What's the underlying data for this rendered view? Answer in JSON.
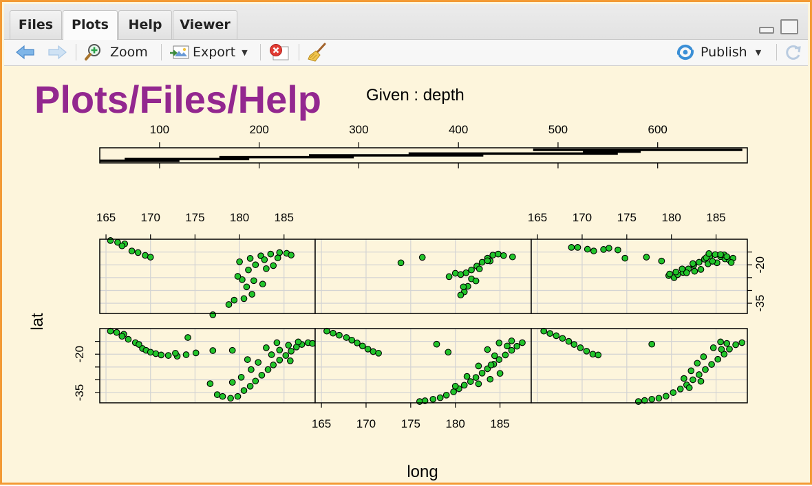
{
  "tabs": [
    {
      "label": "Files",
      "active": false
    },
    {
      "label": "Plots",
      "active": true
    },
    {
      "label": "Help",
      "active": false
    },
    {
      "label": "Viewer",
      "active": false
    }
  ],
  "toolbar": {
    "zoom_label": "Zoom",
    "export_label": "Export",
    "publish_label": "Publish"
  },
  "plot": {
    "watermark": "Plots/Files/Help",
    "given_label": "Given : depth",
    "x_label": "long",
    "y_label": "lat"
  },
  "colors": {
    "border": "#f39a34",
    "background": "#fdf5dc",
    "watermark": "#93278f",
    "points": "#22c42b"
  },
  "chart_data": {
    "type": "scatter",
    "subtype": "coplot",
    "given": {
      "name": "depth",
      "ticks": [
        100,
        200,
        300,
        400,
        500,
        600
      ],
      "range": [
        40,
        690
      ],
      "intervals": [
        [
          40,
          120
        ],
        [
          65,
          190
        ],
        [
          160,
          295
        ],
        [
          250,
          425
        ],
        [
          350,
          560
        ],
        [
          525,
          583
        ],
        [
          475,
          685
        ]
      ]
    },
    "x_axis": {
      "label": "long",
      "ticks": [
        165,
        170,
        175,
        180,
        185
      ],
      "range": [
        164.3,
        188.5
      ]
    },
    "y_axis": {
      "label": "lat",
      "ticks": [
        -20,
        -35
      ],
      "range": [
        -39,
        -10
      ]
    },
    "grid": true,
    "panels": [
      {
        "interval": 1,
        "row": "bottom",
        "col": 1,
        "points": [
          [
            165.5,
            -11
          ],
          [
            166.2,
            -11.5
          ],
          [
            167,
            -12.2
          ],
          [
            166.8,
            -13
          ],
          [
            167.5,
            -14.2
          ],
          [
            168.3,
            -15.5
          ],
          [
            168.7,
            -16.2
          ],
          [
            169.1,
            -17.8
          ],
          [
            169.5,
            -18.5
          ],
          [
            170,
            -19.2
          ],
          [
            170.6,
            -19.8
          ],
          [
            171.2,
            -20.3
          ],
          [
            172,
            -20.5
          ],
          [
            173,
            -20.8
          ],
          [
            174,
            -20.2
          ],
          [
            172.8,
            -19.6
          ],
          [
            175.1,
            -19.5
          ],
          [
            174.2,
            -13.5
          ],
          [
            177,
            -18.6
          ],
          [
            179.2,
            -18.5
          ],
          [
            176.7,
            -31.5
          ],
          [
            177.5,
            -35.8
          ],
          [
            178.1,
            -36.5
          ],
          [
            179,
            -37.2
          ],
          [
            179.8,
            -36.5
          ],
          [
            180.5,
            -34.2
          ],
          [
            181.2,
            -32.5
          ],
          [
            181.8,
            -30.5
          ],
          [
            182.5,
            -28.2
          ],
          [
            183.2,
            -26
          ],
          [
            183.8,
            -24.2
          ],
          [
            184.5,
            -22.3
          ],
          [
            185.2,
            -20.5
          ],
          [
            185.8,
            -18.8
          ],
          [
            186.4,
            -17.2
          ],
          [
            187,
            -16.2
          ],
          [
            187.7,
            -15.5
          ],
          [
            188.2,
            -15.8
          ],
          [
            184.2,
            -15.5
          ],
          [
            185.5,
            -16.5
          ],
          [
            186.6,
            -15.2
          ],
          [
            183,
            -17.5
          ],
          [
            182.1,
            -23.2
          ],
          [
            181.3,
            -26
          ],
          [
            180.2,
            -29
          ],
          [
            179.2,
            -31
          ],
          [
            183.6,
            -20.2
          ],
          [
            180.9,
            -22.1
          ],
          [
            185.7,
            -22.6
          ],
          [
            184.5,
            -18.4
          ]
        ]
      },
      {
        "interval": 2,
        "row": "bottom",
        "col": 2,
        "points": [
          [
            165.6,
            -11
          ],
          [
            166.3,
            -11.8
          ],
          [
            167,
            -12.6
          ],
          [
            167.8,
            -13.5
          ],
          [
            168.4,
            -14.5
          ],
          [
            169,
            -15.6
          ],
          [
            169.6,
            -16.8
          ],
          [
            170.2,
            -18
          ],
          [
            170.8,
            -19
          ],
          [
            171.4,
            -19.6
          ],
          [
            177.9,
            -16.1
          ],
          [
            179.2,
            -19.2
          ],
          [
            176,
            -38.5
          ],
          [
            176.6,
            -38.2
          ],
          [
            177.5,
            -37.6
          ],
          [
            178.3,
            -37
          ],
          [
            179,
            -36
          ],
          [
            179.8,
            -34.7
          ],
          [
            180.4,
            -33.5
          ],
          [
            181,
            -32.1
          ],
          [
            181.7,
            -30.7
          ],
          [
            182.3,
            -29.1
          ],
          [
            183,
            -27.4
          ],
          [
            183.6,
            -25.7
          ],
          [
            184.3,
            -23.9
          ],
          [
            184.9,
            -22.1
          ],
          [
            185.6,
            -20.3
          ],
          [
            186.3,
            -18.5
          ],
          [
            186.9,
            -16.9
          ],
          [
            187.5,
            -15.5
          ],
          [
            184.9,
            -15.6
          ],
          [
            185.8,
            -16.8
          ],
          [
            186.3,
            -14.8
          ],
          [
            183.6,
            -18.2
          ],
          [
            184.4,
            -20.6
          ],
          [
            182.6,
            -24.6
          ],
          [
            181.3,
            -28.7
          ],
          [
            180,
            -32.5
          ],
          [
            185,
            -27.5
          ],
          [
            183.9,
            -29.8
          ],
          [
            182.6,
            -31.6
          ],
          [
            184,
            -24.2
          ]
        ]
      },
      {
        "interval": 3,
        "row": "bottom",
        "col": 3,
        "points": [
          [
            165.7,
            -11
          ],
          [
            166.4,
            -11.9
          ],
          [
            167.1,
            -12.8
          ],
          [
            167.8,
            -13.8
          ],
          [
            168.5,
            -15
          ],
          [
            169.1,
            -16.2
          ],
          [
            169.8,
            -17.5
          ],
          [
            170.5,
            -18.8
          ],
          [
            171.2,
            -20
          ],
          [
            171.8,
            -20.3
          ],
          [
            177.8,
            -16.1
          ],
          [
            176.3,
            -38.5
          ],
          [
            177,
            -38.1
          ],
          [
            177.8,
            -37.6
          ],
          [
            178.6,
            -37.2
          ],
          [
            179.4,
            -36.4
          ],
          [
            180.2,
            -35
          ],
          [
            181,
            -33.6
          ],
          [
            181.7,
            -32
          ],
          [
            182.4,
            -30
          ],
          [
            183.1,
            -28
          ],
          [
            183.8,
            -26
          ],
          [
            184.5,
            -24
          ],
          [
            185.2,
            -22
          ],
          [
            185.9,
            -20
          ],
          [
            186.5,
            -18
          ],
          [
            187.2,
            -16.3
          ],
          [
            187.9,
            -15.5
          ],
          [
            185.5,
            -15.2
          ],
          [
            186.2,
            -15.8
          ],
          [
            184.7,
            -17.5
          ],
          [
            183.6,
            -21
          ],
          [
            182.2,
            -26.5
          ],
          [
            181.4,
            -29.5
          ],
          [
            182.9,
            -23.5
          ],
          [
            185.6,
            -18.1
          ],
          [
            183.3,
            -30.6
          ],
          [
            182,
            -33.1
          ]
        ]
      },
      {
        "interval": 4,
        "row": "top",
        "col": 1,
        "points": [
          [
            165.5,
            -10.5
          ],
          [
            166.3,
            -11.2
          ],
          [
            167.1,
            -11.8
          ],
          [
            166.8,
            -12.6
          ],
          [
            167.9,
            -14.6
          ],
          [
            168.6,
            -15.2
          ],
          [
            169.4,
            -16.3
          ],
          [
            170,
            -17
          ],
          [
            180,
            -18.8
          ],
          [
            181.2,
            -17.5
          ],
          [
            182.4,
            -16.5
          ],
          [
            183.5,
            -15.8
          ],
          [
            184.5,
            -15.2
          ],
          [
            185.3,
            -15.5
          ],
          [
            185.8,
            -16.2
          ],
          [
            182.8,
            -18
          ],
          [
            181.8,
            -20
          ],
          [
            181,
            -22
          ],
          [
            180.3,
            -25.8
          ],
          [
            181.6,
            -26.2
          ],
          [
            180.8,
            -28.6
          ],
          [
            181.4,
            -31.5
          ],
          [
            180.5,
            -33.2
          ],
          [
            179.4,
            -33.8
          ],
          [
            178.8,
            -35.5
          ],
          [
            177,
            -39.5
          ],
          [
            182.6,
            -27.5
          ],
          [
            183.8,
            -20.3
          ],
          [
            183,
            -21.5
          ],
          [
            184.3,
            -17.3
          ],
          [
            179.8,
            -24.5
          ]
        ]
      },
      {
        "interval": 5,
        "row": "top",
        "col": 2,
        "points": [
          [
            173.9,
            -19.2
          ],
          [
            176.3,
            -17.1
          ],
          [
            179.3,
            -24.6
          ],
          [
            180,
            -23.3
          ],
          [
            180.6,
            -23.8
          ],
          [
            181.2,
            -23.1
          ],
          [
            181.8,
            -22
          ],
          [
            182.4,
            -20.5
          ],
          [
            183,
            -19
          ],
          [
            183.6,
            -17.4
          ],
          [
            184.2,
            -16.2
          ],
          [
            184.8,
            -15.8
          ],
          [
            185.4,
            -16.4
          ],
          [
            183.9,
            -18.5
          ],
          [
            182.7,
            -21.6
          ],
          [
            181.8,
            -25.5
          ],
          [
            181.4,
            -28.4
          ],
          [
            181,
            -30.6
          ],
          [
            180.6,
            -31.8
          ],
          [
            186.4,
            -16.9
          ],
          [
            182.3,
            -26.3
          ],
          [
            180.9,
            -28.6
          ],
          [
            183.6,
            -18.4
          ]
        ]
      },
      {
        "interval": 6,
        "row": "top",
        "col": 3,
        "points": [
          [
            168.8,
            -13.2
          ],
          [
            169.5,
            -13.2
          ],
          [
            170.6,
            -13.9
          ],
          [
            171.3,
            -14.6
          ],
          [
            172.4,
            -14
          ],
          [
            173,
            -13.5
          ],
          [
            174,
            -14.2
          ],
          [
            174.8,
            -17.4
          ],
          [
            177.2,
            -17
          ],
          [
            178.9,
            -18.5
          ],
          [
            179.7,
            -24.2
          ],
          [
            180.3,
            -25
          ],
          [
            180.7,
            -23.8
          ],
          [
            181.3,
            -23
          ],
          [
            181.9,
            -21.6
          ],
          [
            182.5,
            -20.2
          ],
          [
            183.1,
            -19
          ],
          [
            183.7,
            -17.8
          ],
          [
            184.3,
            -16.6
          ],
          [
            184.9,
            -16
          ],
          [
            185.5,
            -16.8
          ],
          [
            186,
            -17.7
          ],
          [
            186.5,
            -18.2
          ],
          [
            186.9,
            -17.4
          ],
          [
            185.1,
            -19.2
          ],
          [
            184.1,
            -19.6
          ],
          [
            183.3,
            -21.8
          ],
          [
            182.6,
            -22.5
          ],
          [
            181.7,
            -23.1
          ],
          [
            185.9,
            -16.1
          ],
          [
            184.6,
            -18.6
          ],
          [
            183.9,
            -17.2
          ],
          [
            182.4,
            -19.5
          ],
          [
            181.2,
            -21.6
          ],
          [
            180.5,
            -22.8
          ],
          [
            179.8,
            -23.6
          ],
          [
            184.2,
            -15.6
          ],
          [
            185.5,
            -16
          ],
          [
            186.2,
            -16.8
          ],
          [
            186.7,
            -19.1
          ]
        ]
      }
    ]
  }
}
